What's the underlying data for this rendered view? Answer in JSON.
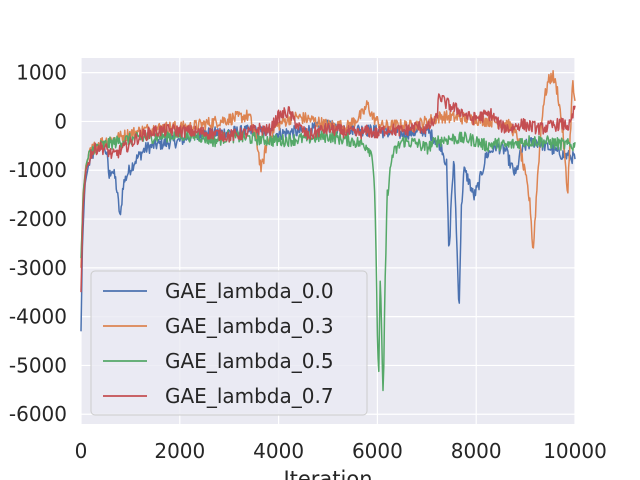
{
  "chart_data": {
    "type": "line",
    "title": "",
    "xlabel": "Iteration",
    "ylabel": "",
    "xlim": [
      0,
      10000
    ],
    "ylim": [
      -6200,
      1300
    ],
    "x_ticks": [
      0,
      2000,
      4000,
      6000,
      8000,
      10000
    ],
    "x_tick_labels": [
      "0",
      "2000",
      "4000",
      "6000",
      "8000",
      "10000"
    ],
    "y_ticks": [
      1000,
      0,
      -1000,
      -2000,
      -3000,
      -4000,
      -5000,
      -6000
    ],
    "y_tick_labels": [
      "1000",
      "0",
      "-1000",
      "-2000",
      "-3000",
      "-4000",
      "-5000",
      "-6000"
    ],
    "grid": true,
    "legend_position": "lower-left",
    "series": [
      {
        "name": "GAE_lambda_0.0",
        "color": "#4c72b0",
        "points": [
          [
            0,
            -4300
          ],
          [
            30,
            -2500
          ],
          [
            80,
            -1300
          ],
          [
            150,
            -900
          ],
          [
            250,
            -650
          ],
          [
            350,
            -520
          ],
          [
            450,
            -480
          ],
          [
            520,
            -650
          ],
          [
            570,
            -1150
          ],
          [
            620,
            -950
          ],
          [
            700,
            -1200
          ],
          [
            760,
            -1700
          ],
          [
            800,
            -2000
          ],
          [
            850,
            -1300
          ],
          [
            950,
            -1050
          ],
          [
            1100,
            -800
          ],
          [
            1300,
            -560
          ],
          [
            1500,
            -480
          ],
          [
            1800,
            -430
          ],
          [
            2000,
            -400
          ],
          [
            2200,
            -300
          ],
          [
            2500,
            -250
          ],
          [
            3000,
            -220
          ],
          [
            3500,
            -200
          ],
          [
            4000,
            -250
          ],
          [
            4500,
            -200
          ],
          [
            5000,
            -100
          ],
          [
            5500,
            -150
          ],
          [
            6000,
            -200
          ],
          [
            6500,
            -250
          ],
          [
            7000,
            -180
          ],
          [
            7200,
            -400
          ],
          [
            7300,
            -500
          ],
          [
            7400,
            -900
          ],
          [
            7450,
            -2800
          ],
          [
            7500,
            -1500
          ],
          [
            7550,
            -800
          ],
          [
            7600,
            -2200
          ],
          [
            7650,
            -3900
          ],
          [
            7700,
            -1800
          ],
          [
            7750,
            -1000
          ],
          [
            7850,
            -1200
          ],
          [
            7950,
            -1550
          ],
          [
            8050,
            -1300
          ],
          [
            8200,
            -700
          ],
          [
            8400,
            -500
          ],
          [
            8600,
            -600
          ],
          [
            8700,
            -900
          ],
          [
            8800,
            -1100
          ],
          [
            8900,
            -650
          ],
          [
            9000,
            -500
          ],
          [
            9200,
            -400
          ],
          [
            9400,
            -500
          ],
          [
            9600,
            -600
          ],
          [
            9800,
            -700
          ],
          [
            10000,
            -750
          ]
        ]
      },
      {
        "name": "GAE_lambda_0.3",
        "color": "#dd8452",
        "points": [
          [
            0,
            -3000
          ],
          [
            40,
            -1500
          ],
          [
            100,
            -900
          ],
          [
            200,
            -600
          ],
          [
            350,
            -450
          ],
          [
            500,
            -400
          ],
          [
            700,
            -350
          ],
          [
            1000,
            -250
          ],
          [
            1400,
            -150
          ],
          [
            1800,
            -120
          ],
          [
            2200,
            -120
          ],
          [
            2600,
            -30
          ],
          [
            3000,
            50
          ],
          [
            3400,
            120
          ],
          [
            3550,
            -350
          ],
          [
            3650,
            -1000
          ],
          [
            3750,
            -500
          ],
          [
            3900,
            -150
          ],
          [
            4100,
            0
          ],
          [
            4300,
            100
          ],
          [
            4600,
            50
          ],
          [
            5000,
            -80
          ],
          [
            5400,
            -100
          ],
          [
            5700,
            150
          ],
          [
            5800,
            350
          ],
          [
            5900,
            100
          ],
          [
            6100,
            -100
          ],
          [
            6400,
            -80
          ],
          [
            6700,
            -100
          ],
          [
            7000,
            0
          ],
          [
            7300,
            100
          ],
          [
            7600,
            80
          ],
          [
            8000,
            50
          ],
          [
            8400,
            0
          ],
          [
            8700,
            -100
          ],
          [
            8850,
            -350
          ],
          [
            8950,
            -900
          ],
          [
            9050,
            -1400
          ],
          [
            9100,
            -1800
          ],
          [
            9150,
            -2700
          ],
          [
            9250,
            -1000
          ],
          [
            9350,
            300
          ],
          [
            9450,
            800
          ],
          [
            9550,
            950
          ],
          [
            9650,
            600
          ],
          [
            9750,
            -200
          ],
          [
            9850,
            -1500
          ],
          [
            9950,
            800
          ],
          [
            10000,
            400
          ]
        ]
      },
      {
        "name": "GAE_lambda_0.5",
        "color": "#55a868",
        "points": [
          [
            0,
            -2800
          ],
          [
            50,
            -1400
          ],
          [
            120,
            -800
          ],
          [
            250,
            -550
          ],
          [
            400,
            -500
          ],
          [
            600,
            -450
          ],
          [
            900,
            -380
          ],
          [
            1200,
            -350
          ],
          [
            1600,
            -300
          ],
          [
            2000,
            -280
          ],
          [
            2400,
            -300
          ],
          [
            2700,
            -400
          ],
          [
            3000,
            -300
          ],
          [
            3500,
            -350
          ],
          [
            4000,
            -400
          ],
          [
            4500,
            -350
          ],
          [
            5000,
            -300
          ],
          [
            5500,
            -400
          ],
          [
            5800,
            -500
          ],
          [
            5900,
            -700
          ],
          [
            5950,
            -1500
          ],
          [
            5980,
            -3200
          ],
          [
            6000,
            -4500
          ],
          [
            6030,
            -5100
          ],
          [
            6060,
            -3000
          ],
          [
            6090,
            -4600
          ],
          [
            6120,
            -5800
          ],
          [
            6150,
            -3500
          ],
          [
            6200,
            -1500
          ],
          [
            6300,
            -700
          ],
          [
            6500,
            -400
          ],
          [
            6800,
            -450
          ],
          [
            7000,
            -550
          ],
          [
            7200,
            -400
          ],
          [
            7500,
            -350
          ],
          [
            7800,
            -350
          ],
          [
            8000,
            -400
          ],
          [
            8200,
            -500
          ],
          [
            8400,
            -450
          ],
          [
            8600,
            -500
          ],
          [
            8800,
            -450
          ],
          [
            9000,
            -400
          ],
          [
            9300,
            -400
          ],
          [
            9600,
            -450
          ],
          [
            10000,
            -500
          ]
        ]
      },
      {
        "name": "GAE_lambda_0.7",
        "color": "#c44e52",
        "points": [
          [
            0,
            -3500
          ],
          [
            40,
            -1800
          ],
          [
            100,
            -1000
          ],
          [
            200,
            -650
          ],
          [
            350,
            -520
          ],
          [
            500,
            -560
          ],
          [
            650,
            -700
          ],
          [
            800,
            -600
          ],
          [
            1000,
            -450
          ],
          [
            1200,
            -300
          ],
          [
            1500,
            -200
          ],
          [
            1800,
            -180
          ],
          [
            2100,
            -200
          ],
          [
            2400,
            -220
          ],
          [
            2700,
            -250
          ],
          [
            3000,
            -300
          ],
          [
            3300,
            -250
          ],
          [
            3600,
            -150
          ],
          [
            3800,
            -200
          ],
          [
            4000,
            100
          ],
          [
            4200,
            200
          ],
          [
            4400,
            -100
          ],
          [
            4600,
            -300
          ],
          [
            4800,
            -200
          ],
          [
            5000,
            -150
          ],
          [
            5300,
            -200
          ],
          [
            5600,
            -250
          ],
          [
            5800,
            -200
          ],
          [
            6000,
            -250
          ],
          [
            6200,
            -150
          ],
          [
            6500,
            -200
          ],
          [
            6800,
            -100
          ],
          [
            7000,
            -150
          ],
          [
            7200,
            50
          ],
          [
            7250,
            550
          ],
          [
            7350,
            400
          ],
          [
            7500,
            300
          ],
          [
            7700,
            200
          ],
          [
            7900,
            50
          ],
          [
            8100,
            100
          ],
          [
            8300,
            150
          ],
          [
            8500,
            -100
          ],
          [
            8700,
            -150
          ],
          [
            8900,
            -50
          ],
          [
            9100,
            -100
          ],
          [
            9300,
            -150
          ],
          [
            9500,
            -100
          ],
          [
            9700,
            -50
          ],
          [
            9900,
            -100
          ],
          [
            10000,
            300
          ]
        ]
      }
    ]
  }
}
